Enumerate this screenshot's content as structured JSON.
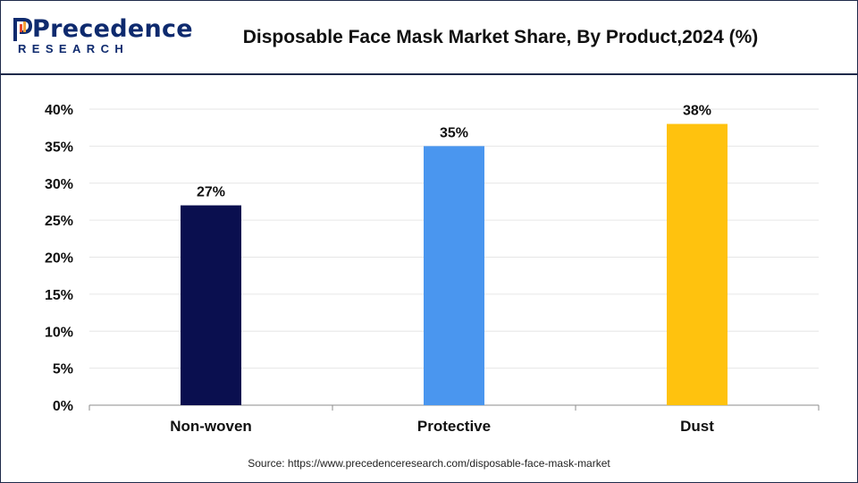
{
  "header": {
    "logo_word": "Precedence",
    "logo_sub": "RESEARCH",
    "title": "Disposable Face Mask Market Share, By Product,2024 (%)"
  },
  "source": "Source: https://www.precedenceresearch.com/disposable-face-mask-market",
  "colors": {
    "navy": "#0a0f4f",
    "blue": "#4a96ef",
    "yellow": "#ffc20e",
    "grid": "#e6e6e6",
    "axis": "#8c8c8c"
  },
  "chart_data": {
    "type": "bar",
    "categories": [
      "Non-woven",
      "Protective",
      "Dust"
    ],
    "values": [
      27,
      35,
      38
    ],
    "data_labels": [
      "27%",
      "35%",
      "38%"
    ],
    "bar_colors": [
      "#0a0f4f",
      "#4a96ef",
      "#ffc20e"
    ],
    "title": "Disposable Face Mask Market Share, By Product,2024 (%)",
    "xlabel": "",
    "ylabel": "",
    "ylim": [
      0,
      40
    ],
    "yticks": [
      0,
      5,
      10,
      15,
      20,
      25,
      30,
      35,
      40
    ],
    "ytick_labels": [
      "0%",
      "5%",
      "10%",
      "15%",
      "20%",
      "25%",
      "30%",
      "35%",
      "40%"
    ],
    "grid": true,
    "legend": "none"
  }
}
